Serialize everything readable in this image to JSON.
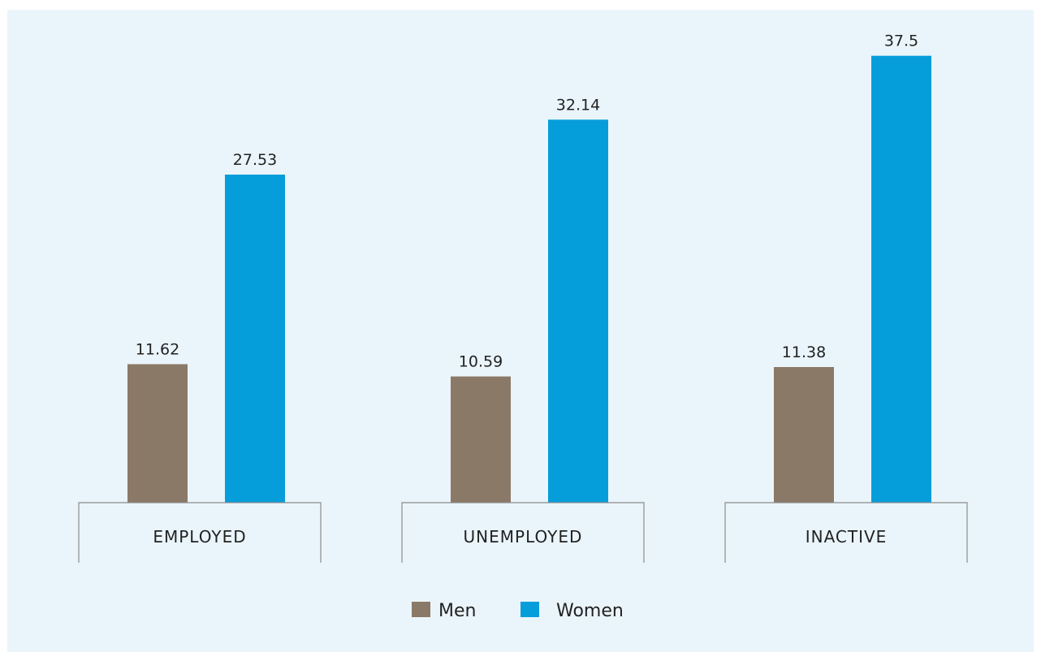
{
  "chart_data": {
    "type": "bar",
    "categories": [
      "EMPLOYED",
      "UNEMPLOYED",
      "INACTIVE"
    ],
    "series": [
      {
        "name": "Men",
        "values": [
          11.62,
          10.59,
          11.38
        ],
        "color": "#8b7967"
      },
      {
        "name": "Women",
        "values": [
          27.53,
          32.14,
          37.5
        ],
        "color": "#069ddb"
      }
    ],
    "data_labels": {
      "Men": [
        "11.62",
        "10.59",
        "11.38"
      ],
      "Women": [
        "27.53",
        "32.14",
        "37.5"
      ]
    },
    "ylim": [
      0,
      40
    ],
    "grid": false,
    "legend_position": "bottom-center",
    "background_color": "#eaf5fb"
  }
}
